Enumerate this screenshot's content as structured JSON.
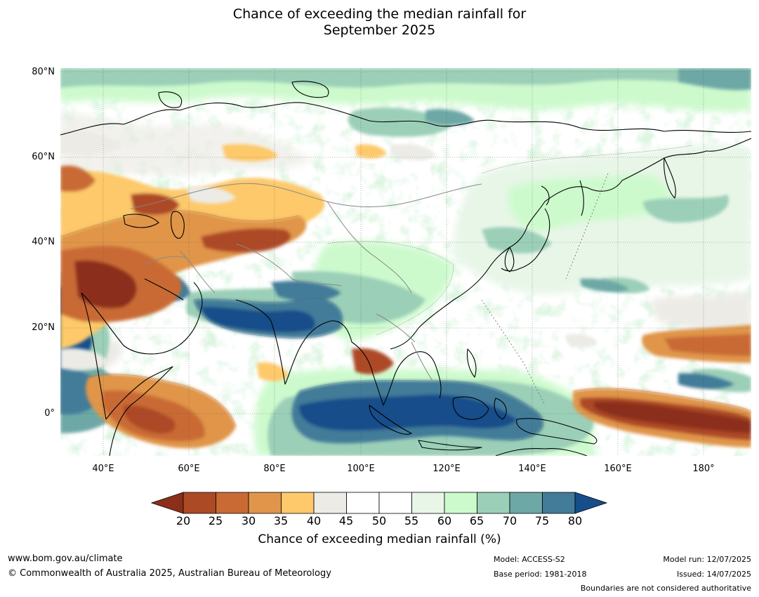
{
  "title": "Chance of exceeding the median rainfall for\nSeptember 2025",
  "map": {
    "lon_range": [
      30,
      191
    ],
    "lat_range": [
      -10,
      80
    ],
    "lat_ticks": [
      {
        "value": 80,
        "label": "80°N"
      },
      {
        "value": 60,
        "label": "60°N"
      },
      {
        "value": 40,
        "label": "40°N"
      },
      {
        "value": 20,
        "label": "20°N"
      },
      {
        "value": 0,
        "label": "0°"
      }
    ],
    "lon_ticks": [
      {
        "value": 40,
        "label": "40°E"
      },
      {
        "value": 60,
        "label": "60°E"
      },
      {
        "value": 80,
        "label": "80°E"
      },
      {
        "value": 100,
        "label": "100°E"
      },
      {
        "value": 120,
        "label": "120°E"
      },
      {
        "value": 140,
        "label": "140°E"
      },
      {
        "value": 160,
        "label": "160°E"
      },
      {
        "value": 180,
        "label": "180°"
      }
    ]
  },
  "colorbar": {
    "label": "Chance of exceeding median rainfall (%)",
    "ticks": [
      "20",
      "25",
      "30",
      "35",
      "40",
      "45",
      "50",
      "55",
      "60",
      "65",
      "70",
      "75",
      "80"
    ],
    "colors": [
      "#8c2f1a",
      "#ad4a26",
      "#c96a34",
      "#e0954a",
      "#fdc96b",
      "#ecebe6",
      "#ffffff",
      "#ffffff",
      "#e8f6e8",
      "#ccfacc",
      "#9bcfb8",
      "#6da8a6",
      "#437c99",
      "#154e8a"
    ]
  },
  "footer": {
    "url": "www.bom.gov.au/climate",
    "copyright": "© Commonwealth of Australia 2025, Australian Bureau of Meteorology",
    "model": "Model: ACCESS-S2",
    "base_period": "Base period: 1981-2018",
    "model_run": "Model run: 12/07/2025",
    "issued": "Issued: 14/07/2025",
    "disclaimer": "Boundaries are not considered authoritative"
  }
}
